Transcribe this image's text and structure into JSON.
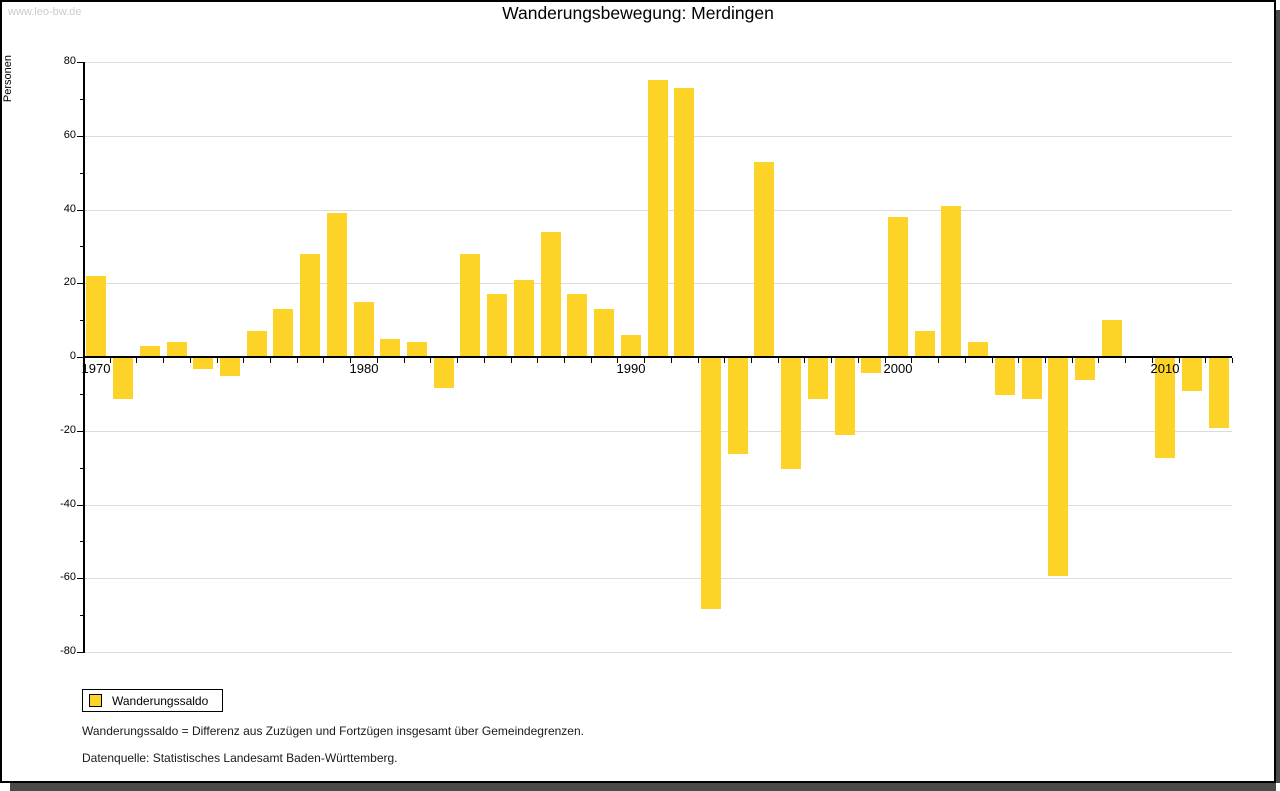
{
  "watermark": "www.leo-bw.de",
  "title": "Wanderungsbewegung: Merdingen",
  "y_axis_label": "Personen",
  "legend": {
    "label": "Wanderungssaldo"
  },
  "footnotes": {
    "definition": "Wanderungssaldo = Differenz aus Zuzügen und Fortzügen insgesamt über Gemeindegrenzen.",
    "source": "Datenquelle: Statistisches Landesamt Baden-Württemberg."
  },
  "chart_data": {
    "type": "bar",
    "title": "Wanderungsbewegung: Merdingen",
    "xlabel": "",
    "ylabel": "Personen",
    "series_name": "Wanderungssaldo",
    "x": [
      1970,
      1971,
      1972,
      1973,
      1974,
      1975,
      1976,
      1977,
      1978,
      1979,
      1980,
      1981,
      1982,
      1983,
      1984,
      1985,
      1986,
      1987,
      1988,
      1989,
      1990,
      1991,
      1992,
      1993,
      1994,
      1995,
      1996,
      1997,
      1998,
      1999,
      2000,
      2001,
      2002,
      2003,
      2004,
      2005,
      2006,
      2007,
      2008,
      2009,
      2010,
      2011,
      2012
    ],
    "values": [
      22,
      -11,
      3,
      4,
      -3,
      -5,
      7,
      13,
      28,
      39,
      15,
      5,
      4,
      -8,
      28,
      17,
      21,
      34,
      17,
      13,
      6,
      75,
      73,
      -68,
      -26,
      53,
      -30,
      -11,
      -21,
      -4,
      38,
      7,
      41,
      4,
      -10,
      -11,
      -59,
      -6,
      10,
      0,
      -27,
      -9,
      -19
    ],
    "ylim": [
      -80,
      80
    ],
    "ytick_step": 20,
    "ytick_minor_step": 10,
    "xtick_labels": [
      1970,
      1980,
      1990,
      2000,
      2010
    ],
    "grid": true,
    "legend_position": "bottom-left",
    "bar_color": "#fcd326",
    "gridline_color": "#dcdcdc",
    "axis_color": "#000000"
  }
}
